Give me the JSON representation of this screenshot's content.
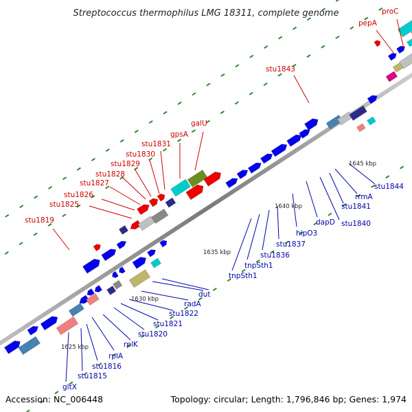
{
  "header": {
    "title": "Streptococcus thermophilus LMG 18311, complete genome"
  },
  "footer": {
    "accession": "Accession: NC_006448",
    "topology": "Topology: circular; Length: 1,796,846 bp; Genes: 1,974"
  },
  "colors": {
    "label_red": "#cc0000",
    "label_blue": "#0000aa",
    "backbone": "#8c8c8c",
    "tick": "#2d8a2d",
    "blue": "#0000ee",
    "steel": "#4682b4",
    "silver": "#c0c0c0",
    "salmon": "#f08080",
    "navy": "#2b2b8a",
    "cyan": "#00cccc",
    "khaki": "#bdb76b",
    "olive": "#6b8e23",
    "red": "#ee0000",
    "magenta": "#dd0088",
    "gray": "#888888"
  },
  "scale_labels": [
    "1625 kbp",
    "1630 kbp",
    "1635 kbp",
    "1640 kbp",
    "1645 kbp"
  ],
  "labels_top": [
    "stu1819",
    "stu1825",
    "stu1826",
    "stu1827",
    "stu1828",
    "stu1829",
    "stu1830",
    "stu1831",
    "gpsA",
    "galU",
    "stu1843",
    "pepA",
    "proC"
  ],
  "labels_bottom": [
    "gltX",
    "stu1815",
    "stu1816",
    "rplA",
    "rplK",
    "stu1820",
    "stu1821",
    "stu1822",
    "radA",
    "dut",
    "tnpSth1",
    "tnpSth1",
    "stu1836",
    "stu1837",
    "hipO3",
    "dapD",
    "stu1840",
    "stu1841",
    "rrmA",
    "stu1844"
  ]
}
